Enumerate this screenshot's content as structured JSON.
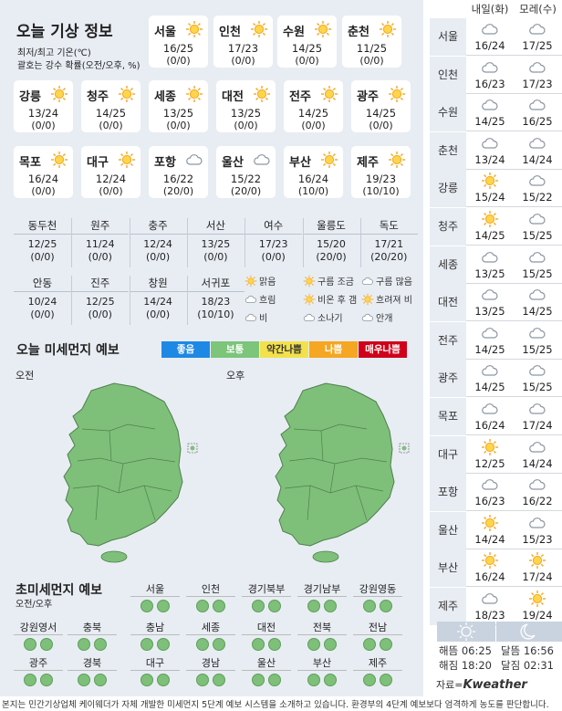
{
  "title": "오늘 기상 정보",
  "subtitle_line1": "최저/최고 기온(℃)",
  "subtitle_line2": "괄호는 강수 확률(오전/오후, %)",
  "cards": [
    {
      "city": "서울",
      "icon": "sun-icon",
      "temp": "16/25",
      "prob": "(0/0)"
    },
    {
      "city": "인천",
      "icon": "sun-icon",
      "temp": "17/23",
      "prob": "(0/0)"
    },
    {
      "city": "수원",
      "icon": "sun-icon",
      "temp": "14/25",
      "prob": "(0/0)"
    },
    {
      "city": "춘천",
      "icon": "sun-icon",
      "temp": "11/25",
      "prob": "(0/0)"
    },
    {
      "city": "강릉",
      "icon": "sun-icon",
      "temp": "13/24",
      "prob": "(0/0)"
    },
    {
      "city": "청주",
      "icon": "sun-icon",
      "temp": "14/25",
      "prob": "(0/0)"
    },
    {
      "city": "세종",
      "icon": "sun-icon",
      "temp": "13/25",
      "prob": "(0/0)"
    },
    {
      "city": "대전",
      "icon": "sun-icon",
      "temp": "13/25",
      "prob": "(0/0)"
    },
    {
      "city": "전주",
      "icon": "sun-icon",
      "temp": "14/25",
      "prob": "(0/0)"
    },
    {
      "city": "광주",
      "icon": "sun-icon",
      "temp": "14/25",
      "prob": "(0/0)"
    },
    {
      "city": "목포",
      "icon": "sun-icon",
      "temp": "16/24",
      "prob": "(0/0)"
    },
    {
      "city": "대구",
      "icon": "sun-icon",
      "temp": "12/24",
      "prob": "(0/0)"
    },
    {
      "city": "포항",
      "icon": "cloud-icon",
      "temp": "16/22",
      "prob": "(20/0)"
    },
    {
      "city": "울산",
      "icon": "cloud-icon",
      "temp": "15/22",
      "prob": "(20/0)"
    },
    {
      "city": "부산",
      "icon": "sun-icon",
      "temp": "16/24",
      "prob": "(10/0)"
    },
    {
      "city": "제주",
      "icon": "sun-icon",
      "temp": "19/23",
      "prob": "(10/10)"
    }
  ],
  "table_row1": [
    {
      "name": "동두천",
      "temp": "12/25",
      "prob": "(0/0)"
    },
    {
      "name": "원주",
      "temp": "11/24",
      "prob": "(0/0)"
    },
    {
      "name": "충주",
      "temp": "12/24",
      "prob": "(0/0)"
    },
    {
      "name": "서산",
      "temp": "13/25",
      "prob": "(0/0)"
    },
    {
      "name": "여수",
      "temp": "17/23",
      "prob": "(0/0)"
    },
    {
      "name": "울릉도",
      "temp": "15/20",
      "prob": "(20/0)"
    },
    {
      "name": "독도",
      "temp": "17/21",
      "prob": "(20/20)"
    }
  ],
  "table_row2": [
    {
      "name": "안동",
      "temp": "10/24",
      "prob": "(0/0)"
    },
    {
      "name": "진주",
      "temp": "12/25",
      "prob": "(0/0)"
    },
    {
      "name": "창원",
      "temp": "14/24",
      "prob": "(0/0)"
    },
    {
      "name": "서귀포",
      "temp": "18/23",
      "prob": "(10/10)"
    }
  ],
  "weather_legend": [
    "맑음",
    "구름 조금",
    "구름 많음",
    "흐림",
    "비온 후 갬",
    "흐려져 비",
    "비",
    "소나기",
    "안개"
  ],
  "dust_title": "오늘 미세먼지 예보",
  "dust_levels": [
    {
      "label": "좋음",
      "color": "#1e88e5"
    },
    {
      "label": "보통",
      "color": "#7cc57a"
    },
    {
      "label": "약간나쁨",
      "color": "#f2e14c"
    },
    {
      "label": "나쁨",
      "color": "#f5a623"
    },
    {
      "label": "매우나쁨",
      "color": "#d0021b"
    }
  ],
  "map_am_label": "오전",
  "map_pm_label": "오후",
  "map_fill": "#7ec07a",
  "pm_title": "초미세먼지 예보",
  "pm_subtitle": "오전/오후",
  "pm_row1": [
    "서울",
    "인천",
    "경기북부",
    "경기남부",
    "강원영동"
  ],
  "pm_row2": [
    "강원영서",
    "충북",
    "충남",
    "세종",
    "대전",
    "전북",
    "전남"
  ],
  "pm_row3": [
    "광주",
    "경북",
    "대구",
    "경남",
    "울산",
    "부산",
    "제주"
  ],
  "right_headers": [
    "내일(화)",
    "모레(수)"
  ],
  "right_rows": [
    {
      "city": "서울",
      "d1": {
        "icon": "cloud-icon",
        "temp": "16/24"
      },
      "d2": {
        "icon": "cloud-icon",
        "temp": "17/25"
      }
    },
    {
      "city": "인천",
      "d1": {
        "icon": "cloud-icon",
        "temp": "16/23"
      },
      "d2": {
        "icon": "cloud-icon",
        "temp": "17/23"
      }
    },
    {
      "city": "수원",
      "d1": {
        "icon": "cloud-icon",
        "temp": "14/25"
      },
      "d2": {
        "icon": "cloud-icon",
        "temp": "16/25"
      }
    },
    {
      "city": "춘천",
      "d1": {
        "icon": "cloud-icon",
        "temp": "13/24"
      },
      "d2": {
        "icon": "cloud-icon",
        "temp": "14/24"
      }
    },
    {
      "city": "강릉",
      "d1": {
        "icon": "sun-icon",
        "temp": "15/24"
      },
      "d2": {
        "icon": "cloud-icon",
        "temp": "15/22"
      }
    },
    {
      "city": "청주",
      "d1": {
        "icon": "sun-icon",
        "temp": "14/25"
      },
      "d2": {
        "icon": "cloud-icon",
        "temp": "15/25"
      }
    },
    {
      "city": "세종",
      "d1": {
        "icon": "cloud-icon",
        "temp": "13/25"
      },
      "d2": {
        "icon": "cloud-icon",
        "temp": "15/25"
      }
    },
    {
      "city": "대전",
      "d1": {
        "icon": "cloud-icon",
        "temp": "13/25"
      },
      "d2": {
        "icon": "cloud-icon",
        "temp": "14/25"
      }
    },
    {
      "city": "전주",
      "d1": {
        "icon": "cloud-icon",
        "temp": "14/25"
      },
      "d2": {
        "icon": "cloud-icon",
        "temp": "15/25"
      }
    },
    {
      "city": "광주",
      "d1": {
        "icon": "cloud-icon",
        "temp": "14/25"
      },
      "d2": {
        "icon": "cloud-icon",
        "temp": "15/25"
      }
    },
    {
      "city": "목포",
      "d1": {
        "icon": "cloud-icon",
        "temp": "16/24"
      },
      "d2": {
        "icon": "cloud-icon",
        "temp": "17/24"
      }
    },
    {
      "city": "대구",
      "d1": {
        "icon": "sun-icon",
        "temp": "12/25"
      },
      "d2": {
        "icon": "cloud-icon",
        "temp": "14/24"
      }
    },
    {
      "city": "포항",
      "d1": {
        "icon": "cloud-icon",
        "temp": "16/23"
      },
      "d2": {
        "icon": "cloud-icon",
        "temp": "16/22"
      }
    },
    {
      "city": "울산",
      "d1": {
        "icon": "sun-icon",
        "temp": "14/24"
      },
      "d2": {
        "icon": "cloud-icon",
        "temp": "15/23"
      }
    },
    {
      "city": "부산",
      "d1": {
        "icon": "sun-icon",
        "temp": "16/24"
      },
      "d2": {
        "icon": "sun-icon",
        "temp": "17/24"
      }
    },
    {
      "city": "제주",
      "d1": {
        "icon": "cloud-icon",
        "temp": "18/23"
      },
      "d2": {
        "icon": "sun-icon",
        "temp": "19/24"
      }
    }
  ],
  "sunrise": "해뜸 06:25",
  "sunset": "해짐 18:20",
  "moonrise": "달뜸 16:56",
  "moonset": "달짐 02:31",
  "source_prefix": "자료=",
  "source_brand": "Kweather",
  "footnote": "본지는 민간기상업체 케이웨더가 자체 개발한 미세먼지 5단계 예보 시스템을 소개하고 있습니다. 환경부의 4단계 예보보다 엄격하게 농도를 판단합니다."
}
